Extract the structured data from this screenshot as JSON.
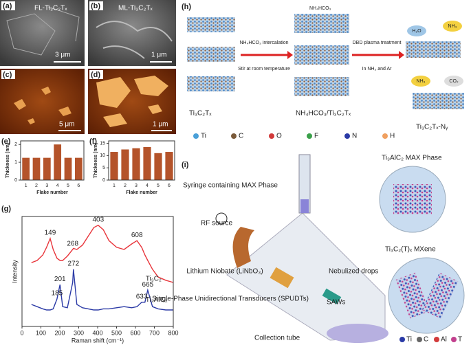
{
  "panels": {
    "a": {
      "label": "(a)",
      "title": "FL-Ti₃C₂Tₓ",
      "scale": "3 μm"
    },
    "b": {
      "label": "(b)",
      "title": "ML-Ti₃C₂Tₓ",
      "scale": "1 μm"
    },
    "c": {
      "label": "(c)",
      "scale": "5 μm"
    },
    "d": {
      "label": "(d)",
      "scale": "1 μm"
    },
    "h": {
      "label": "(h)",
      "top_label": "NH₄HCO₃",
      "step1": "NH₄HCO₃ intercalation",
      "step1b": "Stir at room temperature",
      "step2": "DBD plasma treatment",
      "step2b": "In NH₃ and Ar",
      "start": "Ti₃C₂Tₓ",
      "middle": "NH₄HCO₃/Ti₃C₂Tₓ",
      "end": "Ti₃C₂Tₓ-Nᵧ",
      "gases": [
        "H₂O",
        "NH₃",
        "NH₃",
        "CO₂"
      ],
      "legend": [
        "Ti",
        "C",
        "O",
        "F",
        "N",
        "H"
      ]
    },
    "i": {
      "label": "(i)",
      "max": "Ti₃AlC₂ MAX Phase",
      "syringe": "Syringe containing MAX Phase",
      "rf": "RF source",
      "niobate": "Lithium Niobate (LiNbO₃)",
      "spudt": "Single-Phase Unidirectional Transducers (SPUDTs)",
      "saws": "SAWs",
      "drops": "Nebulized drops",
      "mxene": "Ti₃C₂(T)ₓ MXene",
      "tube": "Collection tube",
      "legend": [
        "Ti",
        "C",
        "Al",
        "T"
      ]
    }
  },
  "chart_data": [
    {
      "type": "bar",
      "panel": "(e)",
      "categories": [
        "1",
        "2",
        "3",
        "4",
        "5",
        "6"
      ],
      "values": [
        1.25,
        1.25,
        1.25,
        2.0,
        1.25,
        1.25
      ],
      "color": "#b4532a",
      "ylim": [
        0,
        2.2
      ],
      "yticks": [
        0,
        1,
        2
      ],
      "x_label": "Flake number",
      "y_label": "Thickness (nm)"
    },
    {
      "type": "bar",
      "panel": "(f)",
      "categories": [
        "1",
        "2",
        "3",
        "4",
        "5",
        "6"
      ],
      "values": [
        11.5,
        12.5,
        13,
        13.5,
        11,
        11.5
      ],
      "color": "#b4532a",
      "ylim": [
        0,
        16
      ],
      "yticks": [
        0,
        5,
        10,
        15
      ],
      "x_label": "Flake number",
      "y_label": "Thickness (nm)"
    },
    {
      "type": "line",
      "panel": "(g)",
      "x": [
        50,
        80,
        110,
        130,
        149,
        165,
        185,
        201,
        215,
        240,
        268,
        272,
        290,
        320,
        350,
        380,
        403,
        430,
        460,
        500,
        540,
        580,
        608,
        633,
        650,
        665,
        690,
        720,
        760,
        800
      ],
      "series": [
        {
          "name": "Ti₃C₂",
          "color": "#e8343a",
          "values": [
            58,
            60,
            65,
            72,
            80,
            70,
            62,
            60,
            60,
            64,
            70,
            71,
            70,
            74,
            82,
            90,
            92,
            88,
            78,
            72,
            70,
            75,
            78,
            72,
            65,
            60,
            52,
            45,
            42,
            40
          ],
          "peaks": [
            149,
            268,
            403,
            608
          ]
        },
        {
          "name": "Ti₃AlC₂",
          "color": "#2b3aa6",
          "values": [
            20,
            18,
            16,
            15,
            15,
            16,
            25,
            38,
            18,
            17,
            40,
            52,
            20,
            17,
            16,
            15,
            15,
            16,
            16,
            17,
            18,
            17,
            18,
            22,
            22,
            33,
            18,
            16,
            15,
            15
          ],
          "peaks": [
            185,
            201,
            272,
            633,
            665
          ]
        }
      ],
      "xlim": [
        0,
        800
      ],
      "xticks": [
        0,
        100,
        200,
        300,
        400,
        500,
        600,
        700,
        800
      ],
      "ylim": [
        0,
        100
      ],
      "x_label": "Raman shift (cm⁻¹)",
      "y_label": "Intensity"
    }
  ]
}
